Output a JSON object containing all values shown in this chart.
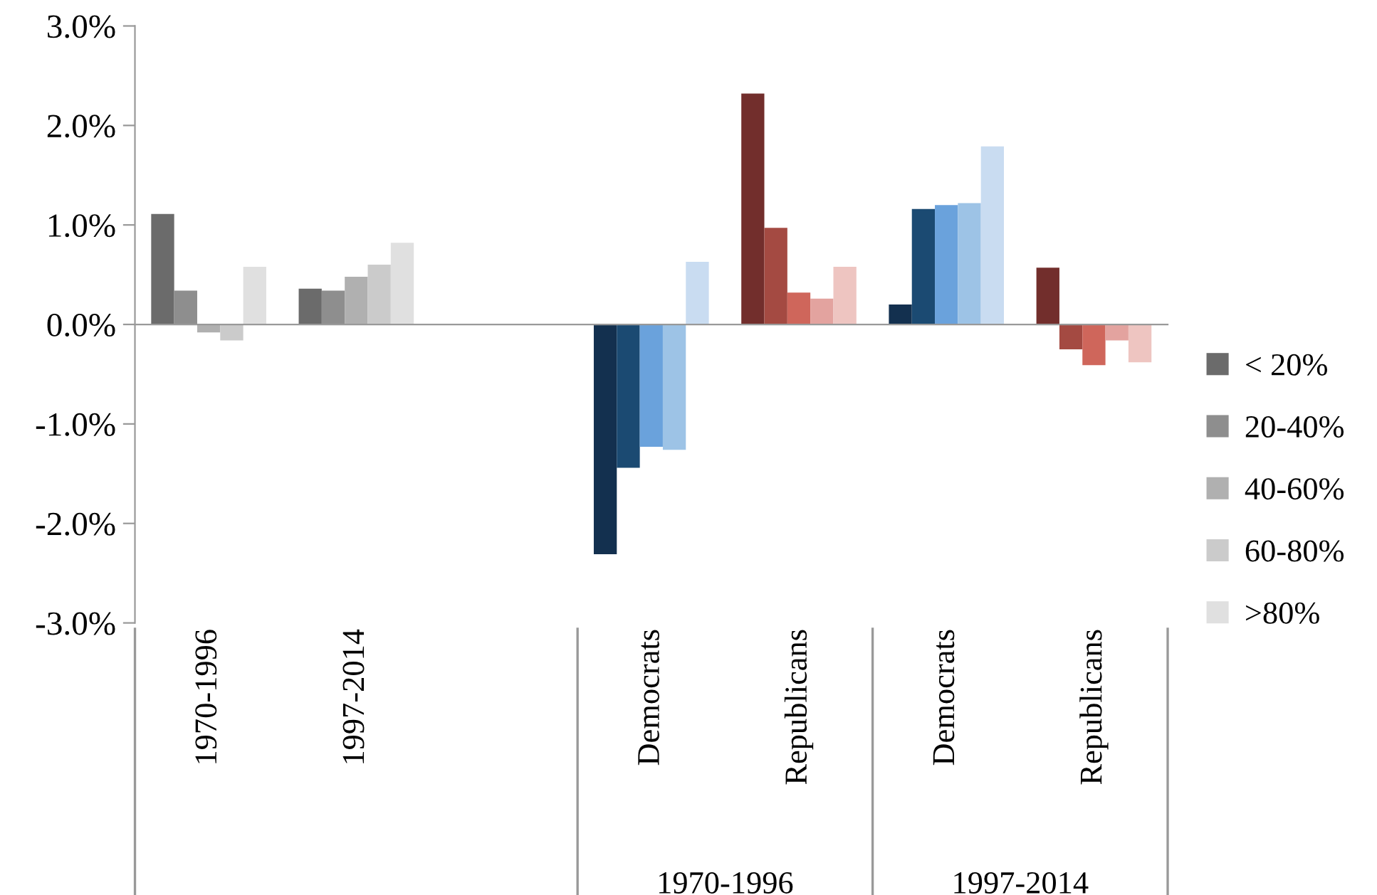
{
  "chart_data": {
    "type": "bar",
    "categories": [
      "1970-1996",
      "1997-2014",
      null,
      "Democrats",
      "Republicans",
      "Democrats",
      "Republicans"
    ],
    "series": [
      {
        "name": "< 20%",
        "color": "#6b6b6b",
        "colors": [
          "#6b6b6b",
          "#6b6b6b",
          "#6b6b6b",
          "#13304f",
          "#722e2c",
          "#13304f",
          "#722e2c"
        ],
        "values": [
          1.11,
          0.36,
          null,
          -2.31,
          2.32,
          0.2,
          0.57
        ]
      },
      {
        "name": "20-40%",
        "color": "#8e8e8e",
        "colors": [
          "#8e8e8e",
          "#8e8e8e",
          "#8e8e8e",
          "#1b4a72",
          "#a44a42",
          "#1b4a72",
          "#a44a42"
        ],
        "values": [
          0.34,
          0.34,
          null,
          -1.44,
          0.97,
          1.16,
          -0.25
        ]
      },
      {
        "name": "40-60%",
        "color": "#b0b0b0",
        "colors": [
          "#b0b0b0",
          "#b0b0b0",
          "#b0b0b0",
          "#6aa2dc",
          "#cf665b",
          "#6aa2dc",
          "#cf665b"
        ],
        "values": [
          -0.08,
          0.48,
          null,
          -1.23,
          0.32,
          1.2,
          -0.41
        ]
      },
      {
        "name": "60-80%",
        "color": "#cbcbcb",
        "colors": [
          "#cbcbcb",
          "#cbcbcb",
          "#cbcbcb",
          "#9dc3e6",
          "#e3a39f",
          "#9dc3e6",
          "#e3a39f"
        ],
        "values": [
          -0.16,
          0.6,
          null,
          -1.26,
          0.26,
          1.22,
          -0.16
        ]
      },
      {
        "name": ">80%",
        "color": "#e0e0e0",
        "colors": [
          "#e0e0e0",
          "#e0e0e0",
          "#e0e0e0",
          "#c9dcf1",
          "#eec5c1",
          "#c9dcf1",
          "#eec5c1"
        ],
        "values": [
          0.58,
          0.82,
          null,
          0.63,
          0.58,
          1.79,
          -0.38
        ]
      }
    ],
    "ylim": [
      -3,
      3
    ],
    "yticks": [
      {
        "value": -3,
        "label": "-3.0%"
      },
      {
        "value": -2,
        "label": "-2.0%"
      },
      {
        "value": -1,
        "label": "-1.0%"
      },
      {
        "value": 0,
        "label": "0.0%"
      },
      {
        "value": 1,
        "label": "1.0%"
      },
      {
        "value": 2,
        "label": "2.0%"
      },
      {
        "value": 3,
        "label": "3.0%"
      }
    ],
    "annotations": [
      "1970-1996",
      "1997-2014"
    ],
    "legend": "right"
  }
}
